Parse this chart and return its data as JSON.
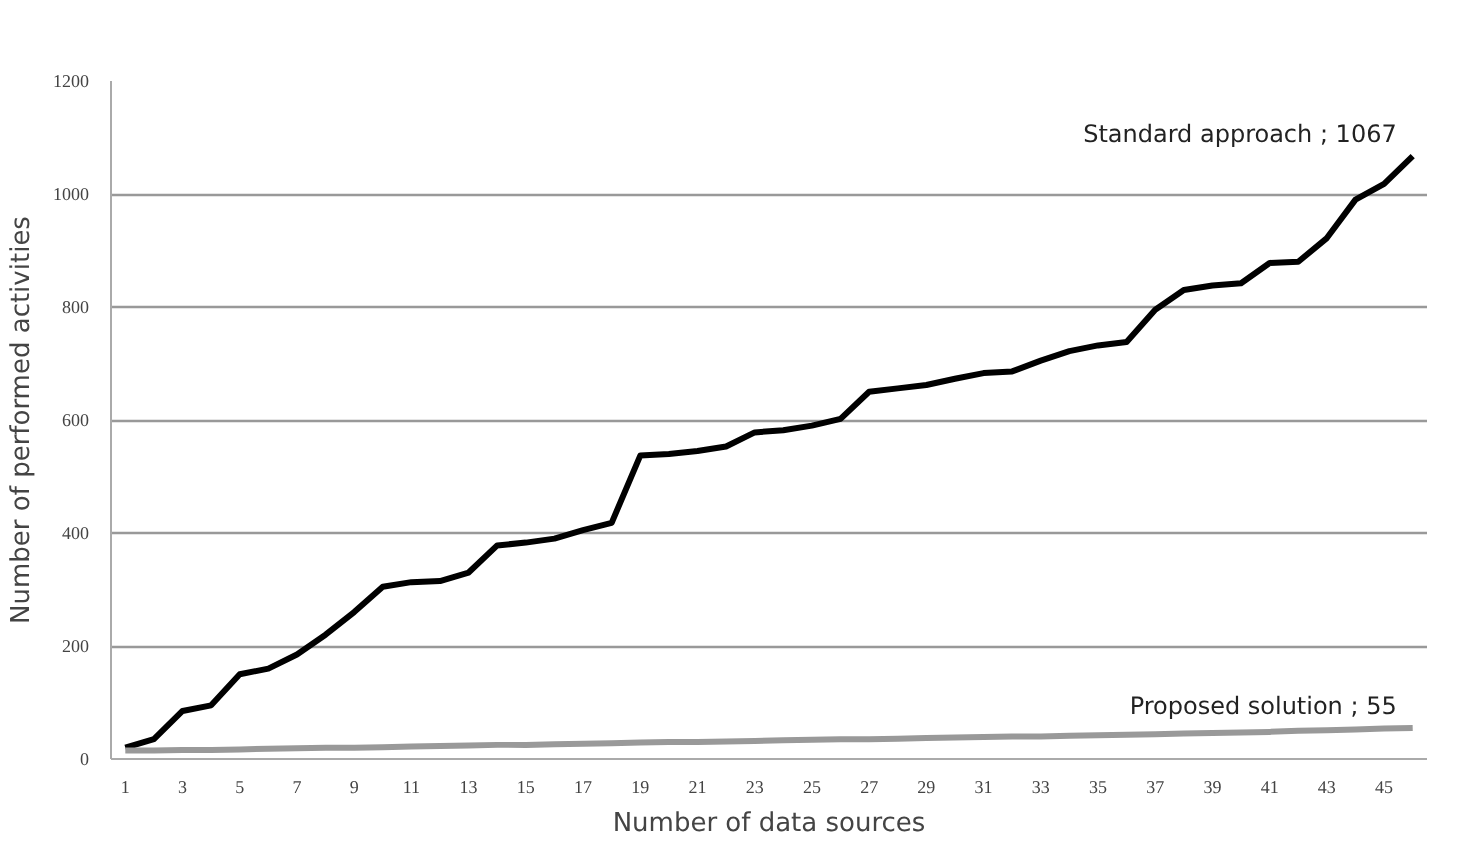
{
  "chart_data": {
    "type": "line",
    "xlabel": "Number of data sources",
    "ylabel": "Number of performed activities",
    "x": [
      1,
      2,
      3,
      4,
      5,
      6,
      7,
      8,
      9,
      10,
      11,
      12,
      13,
      14,
      15,
      16,
      17,
      18,
      19,
      20,
      21,
      22,
      23,
      24,
      25,
      26,
      27,
      28,
      29,
      30,
      31,
      32,
      33,
      34,
      35,
      36,
      37,
      38,
      39,
      40,
      41,
      42,
      43,
      44,
      45,
      46
    ],
    "series": [
      {
        "color": "#000000",
        "values": [
          20,
          35,
          85,
          95,
          150,
          160,
          185,
          220,
          260,
          305,
          313,
          315,
          330,
          378,
          383,
          390,
          405,
          418,
          537,
          540,
          545,
          553,
          578,
          582,
          590,
          602,
          650,
          656,
          662,
          673,
          683,
          686,
          705,
          722,
          732,
          738,
          795,
          830,
          838,
          842,
          878,
          880,
          922,
          990,
          1018,
          1067
        ]
      },
      {
        "color": "#999999",
        "values": [
          15,
          15,
          16,
          16,
          17,
          18,
          19,
          20,
          20,
          21,
          22,
          23,
          24,
          25,
          25,
          26,
          27,
          28,
          29,
          30,
          30,
          31,
          32,
          33,
          34,
          35,
          35,
          36,
          37,
          38,
          39,
          40,
          40,
          41,
          42,
          43,
          44,
          45,
          46,
          47,
          48,
          50,
          51,
          52,
          54,
          55
        ]
      }
    ],
    "xlim": [
      0.5,
      46.5
    ],
    "xticks": [
      1,
      3,
      5,
      7,
      9,
      11,
      13,
      15,
      17,
      19,
      21,
      23,
      25,
      27,
      29,
      31,
      33,
      35,
      37,
      39,
      41,
      43,
      45
    ],
    "ylim": [
      0,
      1200
    ],
    "yticks": [
      0,
      200,
      400,
      600,
      800,
      1000,
      1200
    ],
    "grid": "y",
    "marker": "none",
    "line_style": "solid",
    "annotations": [
      {
        "text": "Standard approach ; 1067",
        "x": 46,
        "y": 1067
      },
      {
        "text": "Proposed solution ; 55",
        "x": 46,
        "y": 55
      }
    ]
  }
}
